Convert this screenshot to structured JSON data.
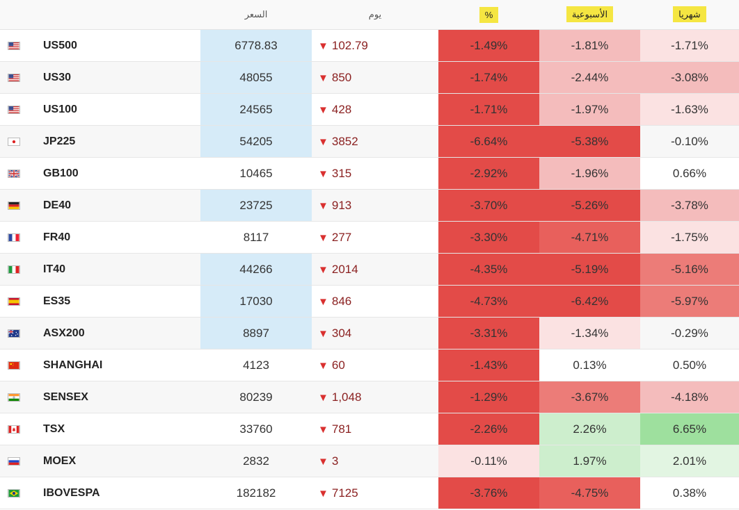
{
  "headers": {
    "flag": "",
    "symbol": "",
    "price": "السعر",
    "change": "يوم",
    "pct": "%",
    "weekly": "الأسبوعية",
    "monthly": "شهريا"
  },
  "colors": {
    "price_highlight": "#d6ebf8",
    "header_highlight": "#f5e642",
    "down_arrow": "#d9302f",
    "neg_strong": "#e34b48",
    "neg_high": "#e8605c",
    "neg_mid": "#ec7c78",
    "neg_light": "#f4bcbc",
    "neg_faint": "#fbe2e2",
    "pos_faint": "#e2f5e2",
    "pos_light": "#cdeecd",
    "pos_strong": "#9ee09e"
  },
  "rows": [
    {
      "flag_icon": "flag-us-icon",
      "symbol": "US500",
      "price": "6778.83",
      "price_highlight": true,
      "change": "102.79",
      "pct": "-1.49%",
      "weekly": "-1.81%",
      "monthly": "-1.71%",
      "pct_shade": "neg_strong",
      "weekly_shade": "neg_light",
      "monthly_shade": "neg_faint"
    },
    {
      "flag_icon": "flag-us-icon",
      "symbol": "US30",
      "price": "48055",
      "price_highlight": true,
      "change": "850",
      "pct": "-1.74%",
      "weekly": "-2.44%",
      "monthly": "-3.08%",
      "pct_shade": "neg_strong",
      "weekly_shade": "neg_light",
      "monthly_shade": "neg_light"
    },
    {
      "flag_icon": "flag-us-icon",
      "symbol": "US100",
      "price": "24565",
      "price_highlight": true,
      "change": "428",
      "pct": "-1.71%",
      "weekly": "-1.97%",
      "monthly": "-1.63%",
      "pct_shade": "neg_strong",
      "weekly_shade": "neg_light",
      "monthly_shade": "neg_faint"
    },
    {
      "flag_icon": "flag-jp-icon",
      "symbol": "JP225",
      "price": "54205",
      "price_highlight": true,
      "change": "3852",
      "pct": "-6.64%",
      "weekly": "-5.38%",
      "monthly": "-0.10%",
      "pct_shade": "neg_strong",
      "weekly_shade": "neg_strong",
      "monthly_shade": "none"
    },
    {
      "flag_icon": "flag-gb-icon",
      "symbol": "GB100",
      "price": "10465",
      "price_highlight": false,
      "change": "315",
      "pct": "-2.92%",
      "weekly": "-1.96%",
      "monthly": "0.66%",
      "pct_shade": "neg_strong",
      "weekly_shade": "neg_light",
      "monthly_shade": "none"
    },
    {
      "flag_icon": "flag-de-icon",
      "symbol": "DE40",
      "price": "23725",
      "price_highlight": true,
      "change": "913",
      "pct": "-3.70%",
      "weekly": "-5.26%",
      "monthly": "-3.78%",
      "pct_shade": "neg_strong",
      "weekly_shade": "neg_strong",
      "monthly_shade": "neg_light"
    },
    {
      "flag_icon": "flag-fr-icon",
      "symbol": "FR40",
      "price": "8117",
      "price_highlight": false,
      "change": "277",
      "pct": "-3.30%",
      "weekly": "-4.71%",
      "monthly": "-1.75%",
      "pct_shade": "neg_strong",
      "weekly_shade": "neg_high",
      "monthly_shade": "neg_faint"
    },
    {
      "flag_icon": "flag-it-icon",
      "symbol": "IT40",
      "price": "44266",
      "price_highlight": true,
      "change": "2014",
      "pct": "-4.35%",
      "weekly": "-5.19%",
      "monthly": "-5.16%",
      "pct_shade": "neg_strong",
      "weekly_shade": "neg_strong",
      "monthly_shade": "neg_mid"
    },
    {
      "flag_icon": "flag-es-icon",
      "symbol": "ES35",
      "price": "17030",
      "price_highlight": true,
      "change": "846",
      "pct": "-4.73%",
      "weekly": "-6.42%",
      "monthly": "-5.97%",
      "pct_shade": "neg_strong",
      "weekly_shade": "neg_strong",
      "monthly_shade": "neg_mid"
    },
    {
      "flag_icon": "flag-au-icon",
      "symbol": "ASX200",
      "price": "8897",
      "price_highlight": true,
      "change": "304",
      "pct": "-3.31%",
      "weekly": "-1.34%",
      "monthly": "-0.29%",
      "pct_shade": "neg_strong",
      "weekly_shade": "neg_faint",
      "monthly_shade": "none"
    },
    {
      "flag_icon": "flag-cn-icon",
      "symbol": "SHANGHAI",
      "price": "4123",
      "price_highlight": false,
      "change": "60",
      "pct": "-1.43%",
      "weekly": "0.13%",
      "monthly": "0.50%",
      "pct_shade": "neg_strong",
      "weekly_shade": "none",
      "monthly_shade": "none"
    },
    {
      "flag_icon": "flag-in-icon",
      "symbol": "SENSEX",
      "price": "80239",
      "price_highlight": false,
      "change": "1,048",
      "pct": "-1.29%",
      "weekly": "-3.67%",
      "monthly": "-4.18%",
      "pct_shade": "neg_strong",
      "weekly_shade": "neg_mid",
      "monthly_shade": "neg_light"
    },
    {
      "flag_icon": "flag-ca-icon",
      "symbol": "TSX",
      "price": "33760",
      "price_highlight": false,
      "change": "781",
      "pct": "-2.26%",
      "weekly": "2.26%",
      "monthly": "6.65%",
      "pct_shade": "neg_strong",
      "weekly_shade": "pos_light",
      "monthly_shade": "pos_strong"
    },
    {
      "flag_icon": "flag-ru-icon",
      "symbol": "MOEX",
      "price": "2832",
      "price_highlight": false,
      "change": "3",
      "pct": "-0.11%",
      "weekly": "1.97%",
      "monthly": "2.01%",
      "pct_shade": "neg_faint",
      "weekly_shade": "pos_light",
      "monthly_shade": "pos_faint"
    },
    {
      "flag_icon": "flag-br-icon",
      "symbol": "IBOVESPA",
      "price": "182182",
      "price_highlight": false,
      "change": "7125",
      "pct": "-3.76%",
      "weekly": "-4.75%",
      "monthly": "0.38%",
      "pct_shade": "neg_strong",
      "weekly_shade": "neg_high",
      "monthly_shade": "none"
    }
  ]
}
